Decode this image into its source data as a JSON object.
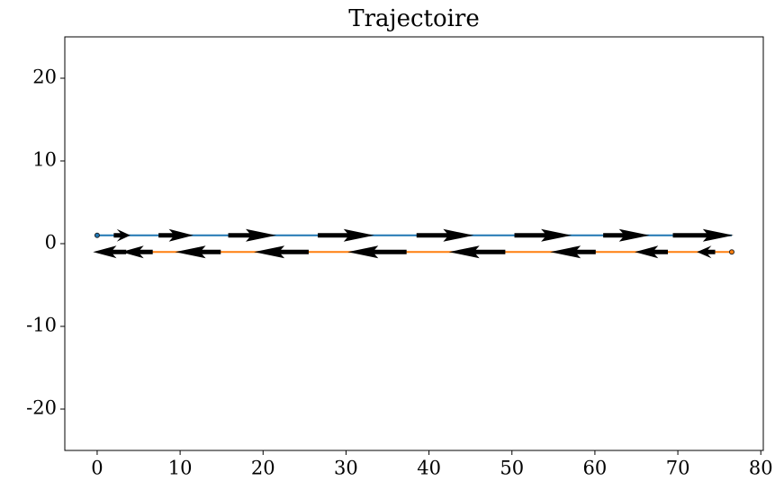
{
  "chart_data": {
    "type": "line",
    "title": "Trajectoire",
    "xlim": [
      -3.9,
      80.3
    ],
    "ylim": [
      -25,
      25
    ],
    "xticks": [
      0,
      10,
      20,
      30,
      40,
      50,
      60,
      70,
      80
    ],
    "yticks": [
      -20,
      -10,
      0,
      10,
      20
    ],
    "series": [
      {
        "color": "#1f77b4",
        "x": [
          0,
          76.5
        ],
        "values": [
          1,
          1
        ],
        "arrows": [
          {
            "x": 2,
            "y": 1,
            "dx": 2
          },
          {
            "x": 7.4,
            "y": 1,
            "dx": 4.2
          },
          {
            "x": 15.8,
            "y": 1,
            "dx": 5.8
          },
          {
            "x": 26.6,
            "y": 1,
            "dx": 6.8
          },
          {
            "x": 38.5,
            "y": 1,
            "dx": 6.9
          },
          {
            "x": 50.3,
            "y": 1,
            "dx": 6.9
          },
          {
            "x": 61,
            "y": 1,
            "dx": 5.6
          },
          {
            "x": 69.4,
            "y": 1,
            "dx": 7.3
          }
        ]
      },
      {
        "color": "#ff7f0e",
        "x": [
          76.5,
          1.3
        ],
        "values": [
          -1,
          -1
        ],
        "arrows": [
          {
            "x": 74.5,
            "y": -1,
            "dx": -2.2
          },
          {
            "x": 68.8,
            "y": -1,
            "dx": -4
          },
          {
            "x": 60.1,
            "y": -1,
            "dx": -5.5
          },
          {
            "x": 49.2,
            "y": -1,
            "dx": -6.8
          },
          {
            "x": 37.3,
            "y": -1,
            "dx": -7.1
          },
          {
            "x": 25.5,
            "y": -1,
            "dx": -6.6
          },
          {
            "x": 14.9,
            "y": -1,
            "dx": -5.5
          },
          {
            "x": 6.7,
            "y": -1,
            "dx": -3.8
          },
          {
            "x": 3.5,
            "y": -1,
            "dx": -4
          }
        ]
      }
    ]
  }
}
